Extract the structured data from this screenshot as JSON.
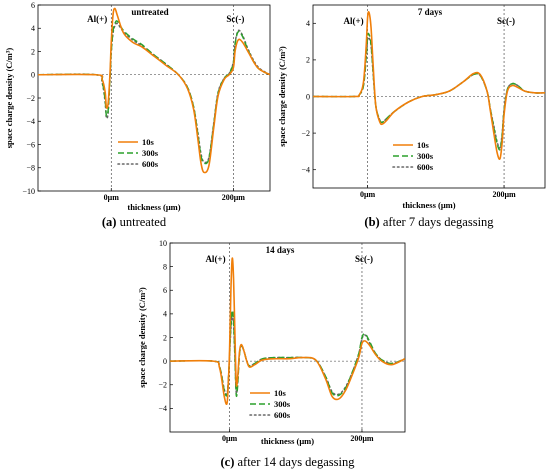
{
  "chart_data": [
    {
      "type": "line",
      "title": "untreated",
      "xlabel": "thickness (μm)",
      "ylabel": "space charge density (C/m³)",
      "ylim": [
        -10,
        6
      ],
      "y_ticks": [
        -10,
        -8,
        -6,
        -4,
        -2,
        0,
        2,
        4,
        6
      ],
      "x_ticks": [
        {
          "x": 0,
          "label": "0μm"
        },
        {
          "x": 200,
          "label": "200μm"
        }
      ],
      "xlim": [
        -120,
        260
      ],
      "annotations": [
        "Al(+)",
        "Sc(-)"
      ],
      "legend_position": "lower-left",
      "grid": false,
      "caption": {
        "prefix": "(a)",
        "text": " untreated"
      },
      "series": [
        {
          "name": "10s",
          "color": "#f07f0a",
          "dash": "solid",
          "x": [
            -120,
            -25,
            -15,
            -10,
            -8,
            -5,
            -2,
            0,
            3,
            6,
            10,
            20,
            35,
            50,
            70,
            90,
            110,
            125,
            135,
            142,
            147,
            152,
            160,
            168,
            175,
            185,
            193,
            200,
            203,
            208,
            215,
            225,
            240,
            260
          ],
          "y": [
            0,
            0,
            -0.4,
            -1.5,
            -2.8,
            -2.4,
            0.2,
            2.8,
            5.2,
            5.7,
            5.1,
            3.6,
            2.8,
            2.4,
            1.6,
            0.8,
            0.0,
            -1.2,
            -3.0,
            -5.6,
            -7.6,
            -8.4,
            -7.8,
            -4.5,
            -1.8,
            -0.4,
            0,
            0.6,
            2.1,
            3.0,
            2.8,
            1.9,
            0.6,
            0
          ]
        },
        {
          "name": "300s",
          "color": "#2ca02c",
          "dash": "6,3",
          "x": [
            -120,
            -25,
            -15,
            -10,
            -8,
            -5,
            -2,
            0,
            3,
            6,
            10,
            20,
            35,
            50,
            70,
            90,
            110,
            125,
            135,
            142,
            147,
            152,
            160,
            168,
            175,
            185,
            193,
            200,
            203,
            208,
            215,
            225,
            240,
            260
          ],
          "y": [
            0,
            0,
            -0.6,
            -2.2,
            -3.5,
            -3.0,
            -0.2,
            2.0,
            3.8,
            4.4,
            4.6,
            3.8,
            3.1,
            2.6,
            1.7,
            0.9,
            0.0,
            -1.1,
            -2.8,
            -5.2,
            -7.0,
            -7.6,
            -7.2,
            -4.2,
            -1.6,
            -0.3,
            0.1,
            1.0,
            2.7,
            3.7,
            3.3,
            2.0,
            0.6,
            0
          ]
        },
        {
          "name": "600s",
          "color": "#666666",
          "dash": "1.5,3",
          "x": [
            -120,
            -25,
            -15,
            -10,
            -8,
            -5,
            -2,
            0,
            3,
            6,
            10,
            20,
            35,
            50,
            70,
            90,
            110,
            125,
            135,
            142,
            147,
            152,
            160,
            168,
            175,
            185,
            193,
            200,
            203,
            208,
            215,
            225,
            240,
            260
          ],
          "y": [
            0,
            0,
            -0.7,
            -2.4,
            -3.7,
            -3.2,
            -0.3,
            1.9,
            3.6,
            4.2,
            4.4,
            3.7,
            3.0,
            2.5,
            1.7,
            0.9,
            0.0,
            -1.1,
            -2.8,
            -5.0,
            -6.8,
            -7.5,
            -7.1,
            -4.1,
            -1.5,
            -0.3,
            0.1,
            1.1,
            2.8,
            3.8,
            3.4,
            2.1,
            0.7,
            0
          ]
        }
      ]
    },
    {
      "type": "line",
      "title": "7 days",
      "xlabel": "thickness (μm)",
      "ylabel": "space charge density (C/m³)",
      "ylim": [
        -5,
        5
      ],
      "y_ticks": [
        -4,
        -2,
        0,
        2,
        4
      ],
      "x_ticks": [
        {
          "x": 0,
          "label": "0μm"
        },
        {
          "x": 200,
          "label": "200μm"
        }
      ],
      "xlim": [
        -80,
        260
      ],
      "annotations": [
        "Al(+)",
        "Sc(-)"
      ],
      "legend_position": "lower-center",
      "grid": false,
      "caption": {
        "prefix": "(b)",
        "text": " after 7 days degassing"
      },
      "series": [
        {
          "name": "10s",
          "color": "#f07f0a",
          "dash": "solid",
          "x": [
            -80,
            -20,
            -12,
            -6,
            -2,
            0,
            2,
            5,
            8,
            12,
            18,
            22,
            28,
            40,
            60,
            80,
            100,
            120,
            140,
            155,
            165,
            175,
            180,
            185,
            190,
            194,
            197,
            200,
            205,
            212,
            220,
            230,
            245,
            260
          ],
          "y": [
            0,
            0,
            0.1,
            0.8,
            2.8,
            4.3,
            4.6,
            3.8,
            1.8,
            -0.5,
            -1.4,
            -1.5,
            -1.3,
            -0.8,
            -0.3,
            0,
            0.1,
            0.3,
            0.8,
            1.25,
            1.2,
            0.3,
            -0.8,
            -2.0,
            -3.1,
            -3.4,
            -2.6,
            -1.0,
            0.3,
            0.6,
            0.5,
            0.3,
            0.2,
            0.2
          ]
        },
        {
          "name": "300s",
          "color": "#2ca02c",
          "dash": "6,3",
          "x": [
            -80,
            -20,
            -12,
            -6,
            -2,
            0,
            2,
            5,
            8,
            12,
            18,
            22,
            28,
            40,
            60,
            80,
            100,
            120,
            140,
            155,
            165,
            175,
            180,
            185,
            190,
            194,
            197,
            200,
            205,
            212,
            220,
            230,
            245,
            260
          ],
          "y": [
            0,
            0,
            0.1,
            0.6,
            2.2,
            3.3,
            3.4,
            2.9,
            1.4,
            -0.5,
            -1.3,
            -1.4,
            -1.2,
            -0.8,
            -0.3,
            0,
            0.1,
            0.3,
            0.8,
            1.2,
            1.15,
            0.3,
            -0.7,
            -1.7,
            -2.6,
            -2.9,
            -2.2,
            -0.8,
            0.4,
            0.7,
            0.6,
            0.3,
            0.2,
            0.2
          ]
        },
        {
          "name": "600s",
          "color": "#666666",
          "dash": "1.5,3",
          "x": [
            -80,
            -20,
            -12,
            -6,
            -2,
            0,
            2,
            5,
            8,
            12,
            18,
            22,
            28,
            40,
            60,
            80,
            100,
            120,
            140,
            155,
            165,
            175,
            180,
            185,
            190,
            194,
            197,
            200,
            205,
            212,
            220,
            230,
            245,
            260
          ],
          "y": [
            0,
            0,
            0.1,
            0.6,
            2.1,
            3.1,
            3.2,
            2.8,
            1.3,
            -0.5,
            -1.3,
            -1.4,
            -1.2,
            -0.8,
            -0.3,
            0,
            0.1,
            0.3,
            0.8,
            1.2,
            1.15,
            0.3,
            -0.7,
            -1.6,
            -2.5,
            -2.8,
            -2.1,
            -0.7,
            0.4,
            0.7,
            0.6,
            0.3,
            0.2,
            0.2
          ]
        }
      ]
    },
    {
      "type": "line",
      "title": "14 days",
      "xlabel": "thickness (μm)",
      "ylabel": "space charge density (C/m³)",
      "ylim": [
        -6,
        10
      ],
      "y_ticks": [
        -4,
        -2,
        0,
        2,
        4,
        6,
        8,
        10
      ],
      "x_ticks": [
        {
          "x": 0,
          "label": "0μm"
        },
        {
          "x": 200,
          "label": "200μm"
        }
      ],
      "xlim": [
        -90,
        265
      ],
      "annotations": [
        "Al(+)",
        "Sc(-)"
      ],
      "legend_position": "lower-center",
      "grid": false,
      "caption": {
        "prefix": "(c)",
        "text": " after 14 days degassing"
      },
      "series": [
        {
          "name": "10s",
          "color": "#f07f0a",
          "dash": "solid",
          "x": [
            -90,
            -25,
            -15,
            -8,
            -4,
            -2,
            0,
            2,
            4,
            6,
            8,
            10,
            12,
            15,
            18,
            22,
            26,
            30,
            38,
            50,
            70,
            90,
            110,
            130,
            145,
            155,
            165,
            175,
            185,
            195,
            200,
            205,
            212,
            220,
            230,
            245,
            265
          ],
          "y": [
            0,
            0,
            -0.6,
            -3.0,
            -3.6,
            -2.0,
            1.0,
            6.0,
            8.7,
            7.0,
            2.5,
            -1.8,
            -1.5,
            0.8,
            1.4,
            0.8,
            0.0,
            -0.5,
            -0.3,
            0.1,
            0.2,
            0.2,
            0.3,
            0.1,
            -1.5,
            -3.0,
            -3.2,
            -2.5,
            -1.2,
            0.3,
            1.5,
            1.7,
            1.3,
            0.6,
            0.0,
            -0.3,
            0.2
          ]
        },
        {
          "name": "300s",
          "color": "#2ca02c",
          "dash": "6,3",
          "x": [
            -90,
            -25,
            -15,
            -8,
            -4,
            -2,
            0,
            2,
            4,
            6,
            8,
            10,
            12,
            15,
            18,
            22,
            26,
            30,
            38,
            50,
            70,
            90,
            110,
            130,
            145,
            155,
            165,
            175,
            185,
            195,
            200,
            205,
            212,
            220,
            230,
            245,
            265
          ],
          "y": [
            0,
            0,
            -0.5,
            -2.5,
            -2.9,
            -1.8,
            0.5,
            3.0,
            4.3,
            3.4,
            0.5,
            -2.8,
            -2.2,
            0.6,
            1.3,
            0.8,
            0.0,
            -0.4,
            -0.2,
            0.2,
            0.3,
            0.3,
            0.3,
            0.1,
            -1.3,
            -2.7,
            -2.9,
            -2.3,
            -1.0,
            0.6,
            2.0,
            2.3,
            1.6,
            0.7,
            0.1,
            -0.2,
            0.2
          ]
        },
        {
          "name": "600s",
          "color": "#666666",
          "dash": "1.5,3",
          "x": [
            -90,
            -25,
            -15,
            -8,
            -4,
            -2,
            0,
            2,
            4,
            6,
            8,
            10,
            12,
            15,
            18,
            22,
            26,
            30,
            38,
            50,
            70,
            90,
            110,
            130,
            145,
            155,
            165,
            175,
            185,
            195,
            200,
            205,
            212,
            220,
            230,
            245,
            265
          ],
          "y": [
            0,
            0,
            -0.5,
            -2.4,
            -2.8,
            -1.7,
            0.4,
            2.7,
            3.9,
            3.1,
            0.4,
            -2.6,
            -2.0,
            0.6,
            1.3,
            0.8,
            0.0,
            -0.4,
            -0.2,
            0.2,
            0.3,
            0.3,
            0.3,
            0.1,
            -1.3,
            -2.6,
            -2.8,
            -2.2,
            -1.0,
            0.6,
            1.9,
            2.2,
            1.5,
            0.7,
            0.1,
            -0.2,
            0.2
          ]
        }
      ]
    }
  ]
}
